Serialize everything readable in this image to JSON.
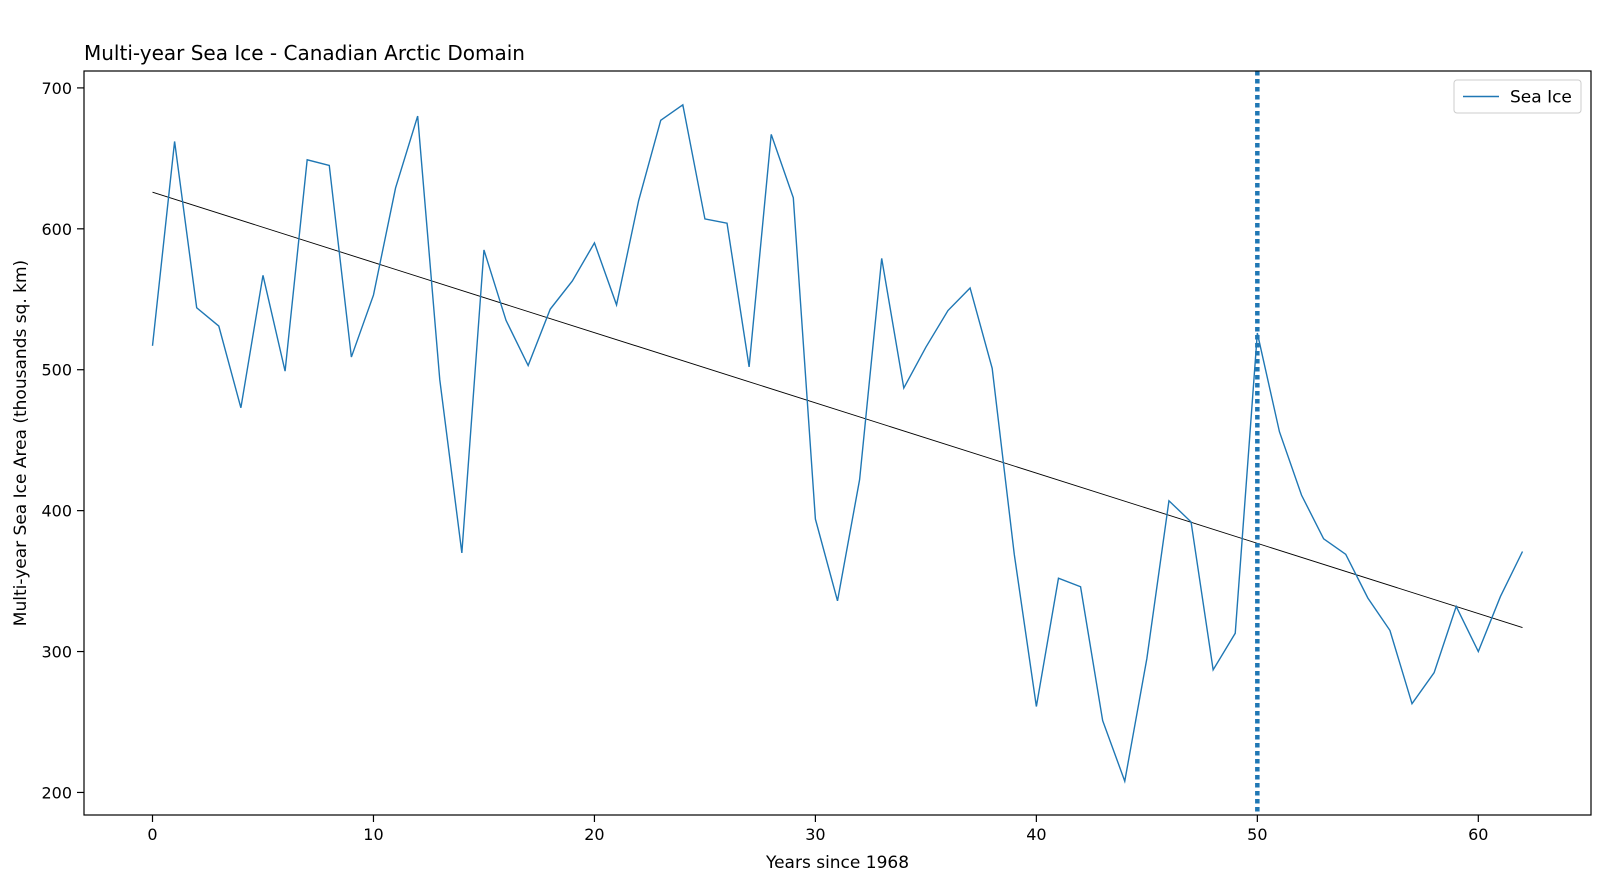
{
  "chart_data": {
    "type": "line",
    "title": "Multi-year Sea Ice - Canadian Arctic Domain",
    "xlabel": "Years since 1968",
    "ylabel": "Multi-year Sea Ice Area (thousands sq. km)",
    "xlim": [
      -3.1,
      65.1
    ],
    "ylim": [
      184,
      712
    ],
    "xticks": [
      0,
      10,
      20,
      30,
      40,
      50,
      60
    ],
    "yticks": [
      200,
      300,
      400,
      500,
      600,
      700
    ],
    "xtick_labels": [
      "0",
      "10",
      "20",
      "30",
      "40",
      "50",
      "60"
    ],
    "ytick_labels": [
      "200",
      "300",
      "400",
      "500",
      "600",
      "700"
    ],
    "legend": {
      "position": "top-right"
    },
    "series": [
      {
        "name": "Sea Ice",
        "color": "#1f77b4",
        "x": [
          0,
          1,
          2,
          3,
          4,
          5,
          6,
          7,
          8,
          9,
          10,
          11,
          12,
          13,
          14,
          15,
          16,
          17,
          18,
          19,
          20,
          21,
          22,
          23,
          24,
          25,
          26,
          27,
          28,
          29,
          30,
          31,
          32,
          33,
          34,
          35,
          36,
          37,
          38,
          39,
          40,
          41,
          42,
          43,
          44,
          45,
          46,
          47,
          48,
          49,
          50,
          51,
          52,
          53,
          54,
          55,
          56,
          57,
          58,
          59,
          60,
          61,
          62
        ],
        "values": [
          517,
          662,
          544,
          531,
          473,
          567,
          499,
          649,
          645,
          509,
          553,
          629,
          680,
          493,
          370,
          585,
          535,
          503,
          543,
          563,
          590,
          546,
          620,
          677,
          688,
          607,
          604,
          502,
          667,
          622,
          394,
          336,
          422,
          579,
          487,
          516,
          542,
          558,
          501,
          369,
          261,
          352,
          346,
          251,
          208,
          295,
          407,
          392,
          287,
          313,
          526,
          456,
          411,
          380,
          369,
          338,
          315,
          263,
          285,
          332,
          300,
          339,
          371
        ]
      }
    ],
    "trendline": {
      "color": "#000000",
      "x": [
        0,
        62
      ],
      "y": [
        626,
        317
      ]
    },
    "vertical_line": {
      "x": 50,
      "style": "dotted",
      "color": "#1f77b4"
    }
  }
}
